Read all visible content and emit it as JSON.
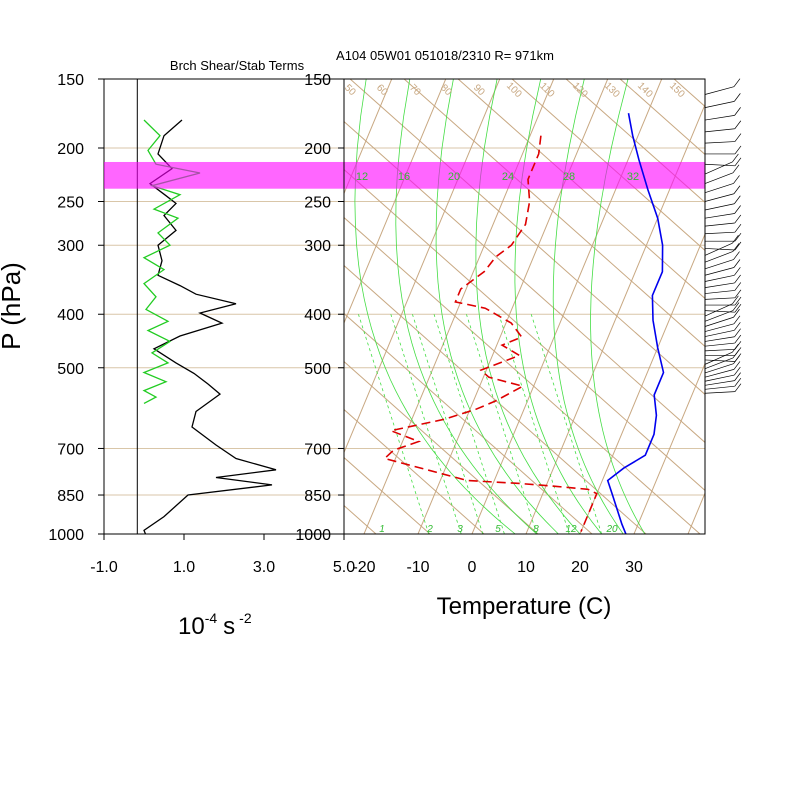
{
  "chart_data": [
    {
      "type": "line",
      "title": "Brch Shear/Stab Terms",
      "xlabel": "10",
      "xlabel_exp1": "-4",
      "xlabel_unit": "s",
      "xlabel_exp2": "-2",
      "ylabel": "P (hPa)",
      "xlim": [
        -1.0,
        5.0
      ],
      "ylim": [
        1000,
        150
      ],
      "x_ticks": [
        "-1.0",
        "1.0",
        "3.0",
        "5.0"
      ],
      "x_tick_values": [
        -1.0,
        1.0,
        3.0,
        5.0
      ],
      "y_ticks": [
        "150",
        "200",
        "250",
        "300",
        "400",
        "500",
        "700",
        "850",
        "1000"
      ],
      "y_tick_values": [
        150,
        200,
        250,
        300,
        400,
        500,
        700,
        850,
        1000
      ],
      "series": [
        {
          "color": "#000000",
          "points": [
            [
              0.95,
              178
            ],
            [
              0.5,
              190
            ],
            [
              0.35,
              205
            ],
            [
              0.7,
              218
            ],
            [
              0.15,
              232
            ],
            [
              0.55,
              244
            ],
            [
              0.8,
              252
            ],
            [
              0.5,
              265
            ],
            [
              0.8,
              282
            ],
            [
              0.35,
              300
            ],
            [
              0.45,
              320
            ],
            [
              0.35,
              340
            ],
            [
              0.9,
              355
            ],
            [
              1.3,
              368
            ],
            [
              2.3,
              383
            ],
            [
              1.4,
              398
            ],
            [
              1.95,
              415
            ],
            [
              0.9,
              438
            ],
            [
              0.25,
              462
            ],
            [
              0.8,
              490
            ],
            [
              1.25,
              512
            ],
            [
              1.6,
              535
            ],
            [
              1.9,
              558
            ],
            [
              1.3,
              600
            ],
            [
              1.2,
              640
            ],
            [
              1.8,
              690
            ],
            [
              2.3,
              730
            ],
            [
              3.3,
              765
            ],
            [
              1.8,
              790
            ],
            [
              3.2,
              815
            ],
            [
              1.1,
              850
            ],
            [
              0.5,
              930
            ],
            [
              0.0,
              985
            ],
            [
              0.05,
              1005
            ]
          ]
        },
        {
          "color": "#22cc22",
          "points": [
            [
              0.0,
              178
            ],
            [
              0.4,
              190
            ],
            [
              0.1,
              202
            ],
            [
              0.3,
              214
            ],
            [
              1.4,
              222
            ],
            [
              0.2,
              234
            ],
            [
              0.9,
              243
            ],
            [
              0.25,
              258
            ],
            [
              0.85,
              268
            ],
            [
              0.35,
              285
            ],
            [
              0.65,
              300
            ],
            [
              0.0,
              316
            ],
            [
              0.5,
              332
            ],
            [
              0.0,
              352
            ],
            [
              0.3,
              372
            ],
            [
              0.05,
              392
            ],
            [
              0.6,
              412
            ],
            [
              0.1,
              428
            ],
            [
              0.65,
              448
            ],
            [
              0.2,
              470
            ],
            [
              0.6,
              490
            ],
            [
              0.0,
              510
            ],
            [
              0.55,
              530
            ],
            [
              0.0,
              550
            ],
            [
              0.3,
              565
            ],
            [
              0.0,
              580
            ]
          ]
        }
      ]
    },
    {
      "type": "line",
      "title": "A104 05W01 051018/2310 R= 971km",
      "xlabel": "Temperature (C)",
      "x_ticks": [
        "-20",
        "-10",
        "0",
        "10",
        "20",
        "30"
      ],
      "x_tick_values": [
        -20,
        -10,
        0,
        10,
        20,
        30
      ],
      "y_ticks": [
        "150",
        "200",
        "250",
        "300",
        "400",
        "500",
        "700",
        "850",
        "1000"
      ],
      "y_tick_values": [
        150,
        200,
        250,
        300,
        400,
        500,
        700,
        850,
        1000
      ],
      "highlight_band_hpa": [
        212,
        237
      ],
      "mixing_ratio_labels_top": [
        "12",
        "16",
        "20",
        "24",
        "28",
        "32"
      ],
      "mixing_ratio_labels_bottom": [
        "1",
        "2",
        "3",
        "5",
        "8",
        "12",
        "20"
      ],
      "dry_adiabat_labels": [
        "50",
        "60",
        "70",
        "80",
        "90",
        "100",
        "110",
        "120",
        "130",
        "140",
        "150"
      ],
      "series": [
        {
          "name": "temperature",
          "color": "#0000ee",
          "points": [
            [
              -3.5,
              173
            ],
            [
              -1,
              190
            ],
            [
              2,
              210
            ],
            [
              6,
              238
            ],
            [
              10,
              268
            ],
            [
              13,
              300
            ],
            [
              15,
              335
            ],
            [
              15,
              370
            ],
            [
              17,
              410
            ],
            [
              20,
              460
            ],
            [
              23,
              510
            ],
            [
              23,
              560
            ],
            [
              25,
              610
            ],
            [
              26,
              660
            ],
            [
              26,
              720
            ],
            [
              23,
              760
            ],
            [
              21,
              800
            ],
            [
              23,
              850
            ],
            [
              27,
              960
            ],
            [
              28.5,
              1000
            ]
          ]
        },
        {
          "name": "dewpoint",
          "color": "#dd0000",
          "points": [
            [
              -18,
              190
            ],
            [
              -17,
              205
            ],
            [
              -17,
              228
            ],
            [
              -15,
              250
            ],
            [
              -14,
              275
            ],
            [
              -15,
              300
            ],
            [
              -17,
              315
            ],
            [
              -18,
              335
            ],
            [
              -21,
              360
            ],
            [
              -21,
              380
            ],
            [
              -15,
              390
            ],
            [
              -9,
              415
            ],
            [
              -6,
              440
            ],
            [
              -9,
              455
            ],
            [
              -5,
              475
            ],
            [
              -11,
              505
            ],
            [
              -9,
              520
            ],
            [
              -2,
              540
            ],
            [
              -6,
              575
            ],
            [
              -9,
              595
            ],
            [
              -14,
              620
            ],
            [
              -23,
              650
            ],
            [
              -17,
              680
            ],
            [
              -21,
              705
            ],
            [
              -22,
              730
            ],
            [
              -5,
              800
            ],
            [
              5,
              810
            ],
            [
              12,
              820
            ],
            [
              18,
              830
            ],
            [
              20,
              845
            ],
            [
              20,
              960
            ],
            [
              20,
              990
            ]
          ]
        }
      ]
    }
  ]
}
